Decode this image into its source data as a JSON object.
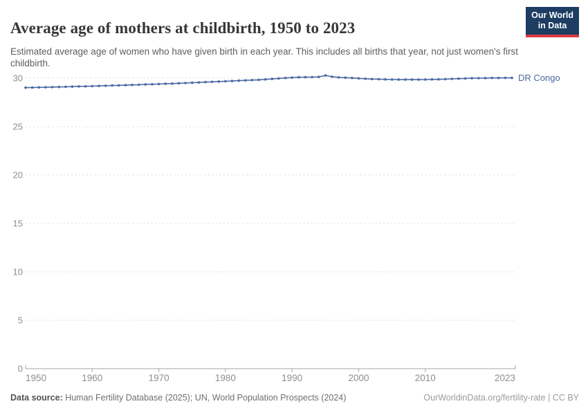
{
  "chart_data": {
    "type": "line",
    "title": "Average age of mothers at childbirth, 1950 to 2023",
    "subtitle": "Estimated average age of women who have given birth in each year. This includes all births that year, not just women's first childbirth.",
    "xlabel": "",
    "ylabel": "",
    "xlim": [
      1950,
      2023
    ],
    "ylim": [
      0,
      30
    ],
    "yticks": [
      0,
      5,
      10,
      15,
      20,
      25,
      30
    ],
    "xticks": [
      1950,
      1960,
      1970,
      1980,
      1990,
      2000,
      2010,
      2023
    ],
    "grid": "horizontal-dashed",
    "legend_position": "end-of-line-label",
    "series": [
      {
        "name": "DR Congo",
        "color": "#4a69a3",
        "x": [
          1950,
          1951,
          1952,
          1953,
          1954,
          1955,
          1956,
          1957,
          1958,
          1959,
          1960,
          1961,
          1962,
          1963,
          1964,
          1965,
          1966,
          1967,
          1968,
          1969,
          1970,
          1971,
          1972,
          1973,
          1974,
          1975,
          1976,
          1977,
          1978,
          1979,
          1980,
          1981,
          1982,
          1983,
          1984,
          1985,
          1986,
          1987,
          1988,
          1989,
          1990,
          1991,
          1992,
          1993,
          1994,
          1995,
          1996,
          1997,
          1998,
          1999,
          2000,
          2001,
          2002,
          2003,
          2004,
          2005,
          2006,
          2007,
          2008,
          2009,
          2010,
          2011,
          2012,
          2013,
          2014,
          2015,
          2016,
          2017,
          2018,
          2019,
          2020,
          2021,
          2022,
          2023
        ],
        "values": [
          29.02,
          29.03,
          29.05,
          29.06,
          29.08,
          29.09,
          29.11,
          29.13,
          29.15,
          29.16,
          29.18,
          29.2,
          29.22,
          29.24,
          29.26,
          29.28,
          29.3,
          29.32,
          29.35,
          29.37,
          29.39,
          29.42,
          29.44,
          29.47,
          29.5,
          29.53,
          29.56,
          29.59,
          29.62,
          29.65,
          29.68,
          29.71,
          29.74,
          29.77,
          29.8,
          29.83,
          29.87,
          29.92,
          29.97,
          30.02,
          30.06,
          30.09,
          30.1,
          30.11,
          30.13,
          30.28,
          30.15,
          30.08,
          30.05,
          30.02,
          29.98,
          29.94,
          29.91,
          29.89,
          29.87,
          29.86,
          29.85,
          29.85,
          29.85,
          29.85,
          29.86,
          29.87,
          29.88,
          29.9,
          29.93,
          29.95,
          29.97,
          29.99,
          30.0,
          30.01,
          30.02,
          30.02,
          30.03,
          30.03
        ]
      }
    ]
  },
  "header": {
    "logo": {
      "line1": "Our World",
      "line2": "in Data"
    }
  },
  "footer": {
    "source_label": "Data source:",
    "source_text": " Human Fertility Database (2025); UN, World Population Prospects (2024)",
    "link_text": "OurWorldinData.org/fertility-rate | CC BY"
  },
  "colors": {
    "line": "#4a69a3",
    "grid": "#dadada",
    "axis": "#a3a3a3",
    "tick_label": "#8d8d8d",
    "logo_bg": "#1d3d63",
    "logo_accent": "#d93a43"
  }
}
